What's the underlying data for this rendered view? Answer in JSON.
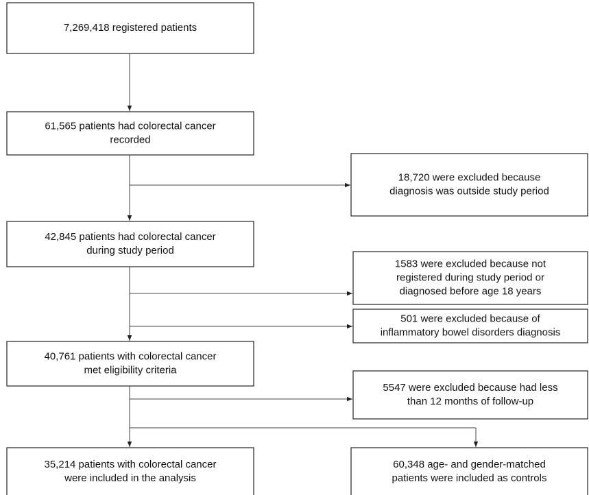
{
  "nodes": [
    {
      "lines": [
        "7,269,418 registered patients"
      ]
    },
    {
      "lines": [
        "61,565 patients had colorectal cancer",
        "recorded"
      ]
    },
    {
      "lines": [
        "18,720 were excluded because",
        "diagnosis was outside study period"
      ]
    },
    {
      "lines": [
        "42,845 patients had colorectal cancer",
        "during study period"
      ]
    },
    {
      "lines": [
        "1583 were excluded because not",
        "registered during study period or",
        "diagnosed before age 18 years"
      ]
    },
    {
      "lines": [
        "501 were excluded because of",
        "inflammatory bowel disorders diagnosis"
      ]
    },
    {
      "lines": [
        "40,761 patients with colorectal cancer",
        "met eligibility criteria"
      ]
    },
    {
      "lines": [
        "5547 were excluded because had less",
        "than 12 months of follow-up"
      ]
    },
    {
      "lines": [
        "35,214 patients with colorectal cancer",
        "were included in the analysis"
      ]
    },
    {
      "lines": [
        "60,348 age- and gender-matched",
        "patients were included as controls"
      ]
    }
  ]
}
